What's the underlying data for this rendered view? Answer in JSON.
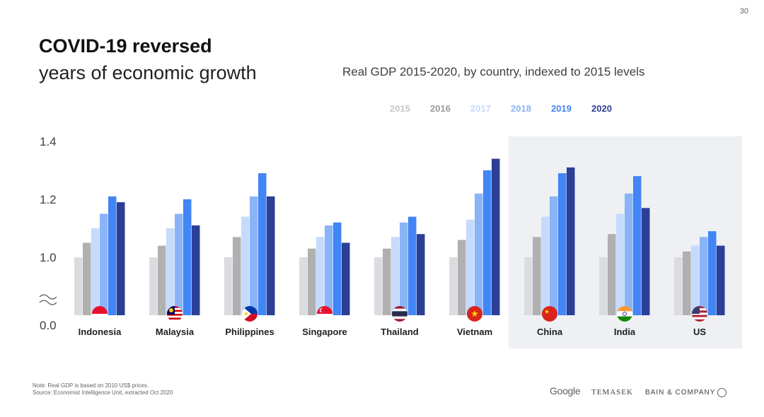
{
  "page_number": "30",
  "title_bold": "COVID-19 reversed",
  "title_light": "years of economic growth",
  "subtitle": "Real GDP 2015-2020, by country, indexed to 2015 levels",
  "note_line1": "Note: Real GDP is based on 2010 US$ prices.",
  "note_line2": "Source: Economist Intelligence Unit, extracted Oct 2020",
  "logos": {
    "google": "Google",
    "temasek": "TEMASEK",
    "bain": "BAIN & COMPANY"
  },
  "chart_data": {
    "type": "bar",
    "title": "Real GDP 2015-2020, by country, indexed to 2015 levels",
    "categories": [
      "Indonesia",
      "Malaysia",
      "Philippines",
      "Singapore",
      "Thailand",
      "Vietnam",
      "China",
      "India",
      "US"
    ],
    "highlighted_categories": [
      "China",
      "India",
      "US"
    ],
    "flags": [
      "flag-indonesia-icon",
      "flag-malaysia-icon",
      "flag-philippines-icon",
      "flag-singapore-icon",
      "flag-thailand-icon",
      "flag-vietnam-icon",
      "flag-china-icon",
      "flag-india-icon",
      "flag-us-icon"
    ],
    "yticks": [
      "0.0",
      "1.0",
      "1.2",
      "1.4"
    ],
    "ylim": [
      0.0,
      1.4
    ],
    "axis_break": "1.0 to 0.0 (broken axis)",
    "grid": false,
    "legend_position": "top",
    "series": [
      {
        "name": "2015",
        "color": "#dadce0",
        "values": [
          1.0,
          1.0,
          1.0,
          1.0,
          1.0,
          1.0,
          1.0,
          1.0,
          1.0
        ]
      },
      {
        "name": "2016",
        "color": "#b0b0b0",
        "values": [
          1.05,
          1.04,
          1.07,
          1.03,
          1.03,
          1.06,
          1.07,
          1.08,
          1.02
        ]
      },
      {
        "name": "2017",
        "color": "#c6dafc",
        "values": [
          1.1,
          1.1,
          1.14,
          1.07,
          1.07,
          1.13,
          1.14,
          1.15,
          1.04
        ]
      },
      {
        "name": "2018",
        "color": "#8ab4f8",
        "values": [
          1.15,
          1.15,
          1.21,
          1.11,
          1.12,
          1.22,
          1.21,
          1.22,
          1.07
        ]
      },
      {
        "name": "2019",
        "color": "#4285f4",
        "values": [
          1.21,
          1.2,
          1.29,
          1.12,
          1.14,
          1.3,
          1.29,
          1.28,
          1.09
        ]
      },
      {
        "name": "2020",
        "color": "#2b3f96",
        "values": [
          1.19,
          1.11,
          1.21,
          1.05,
          1.08,
          1.34,
          1.31,
          1.17,
          1.04
        ]
      }
    ]
  }
}
